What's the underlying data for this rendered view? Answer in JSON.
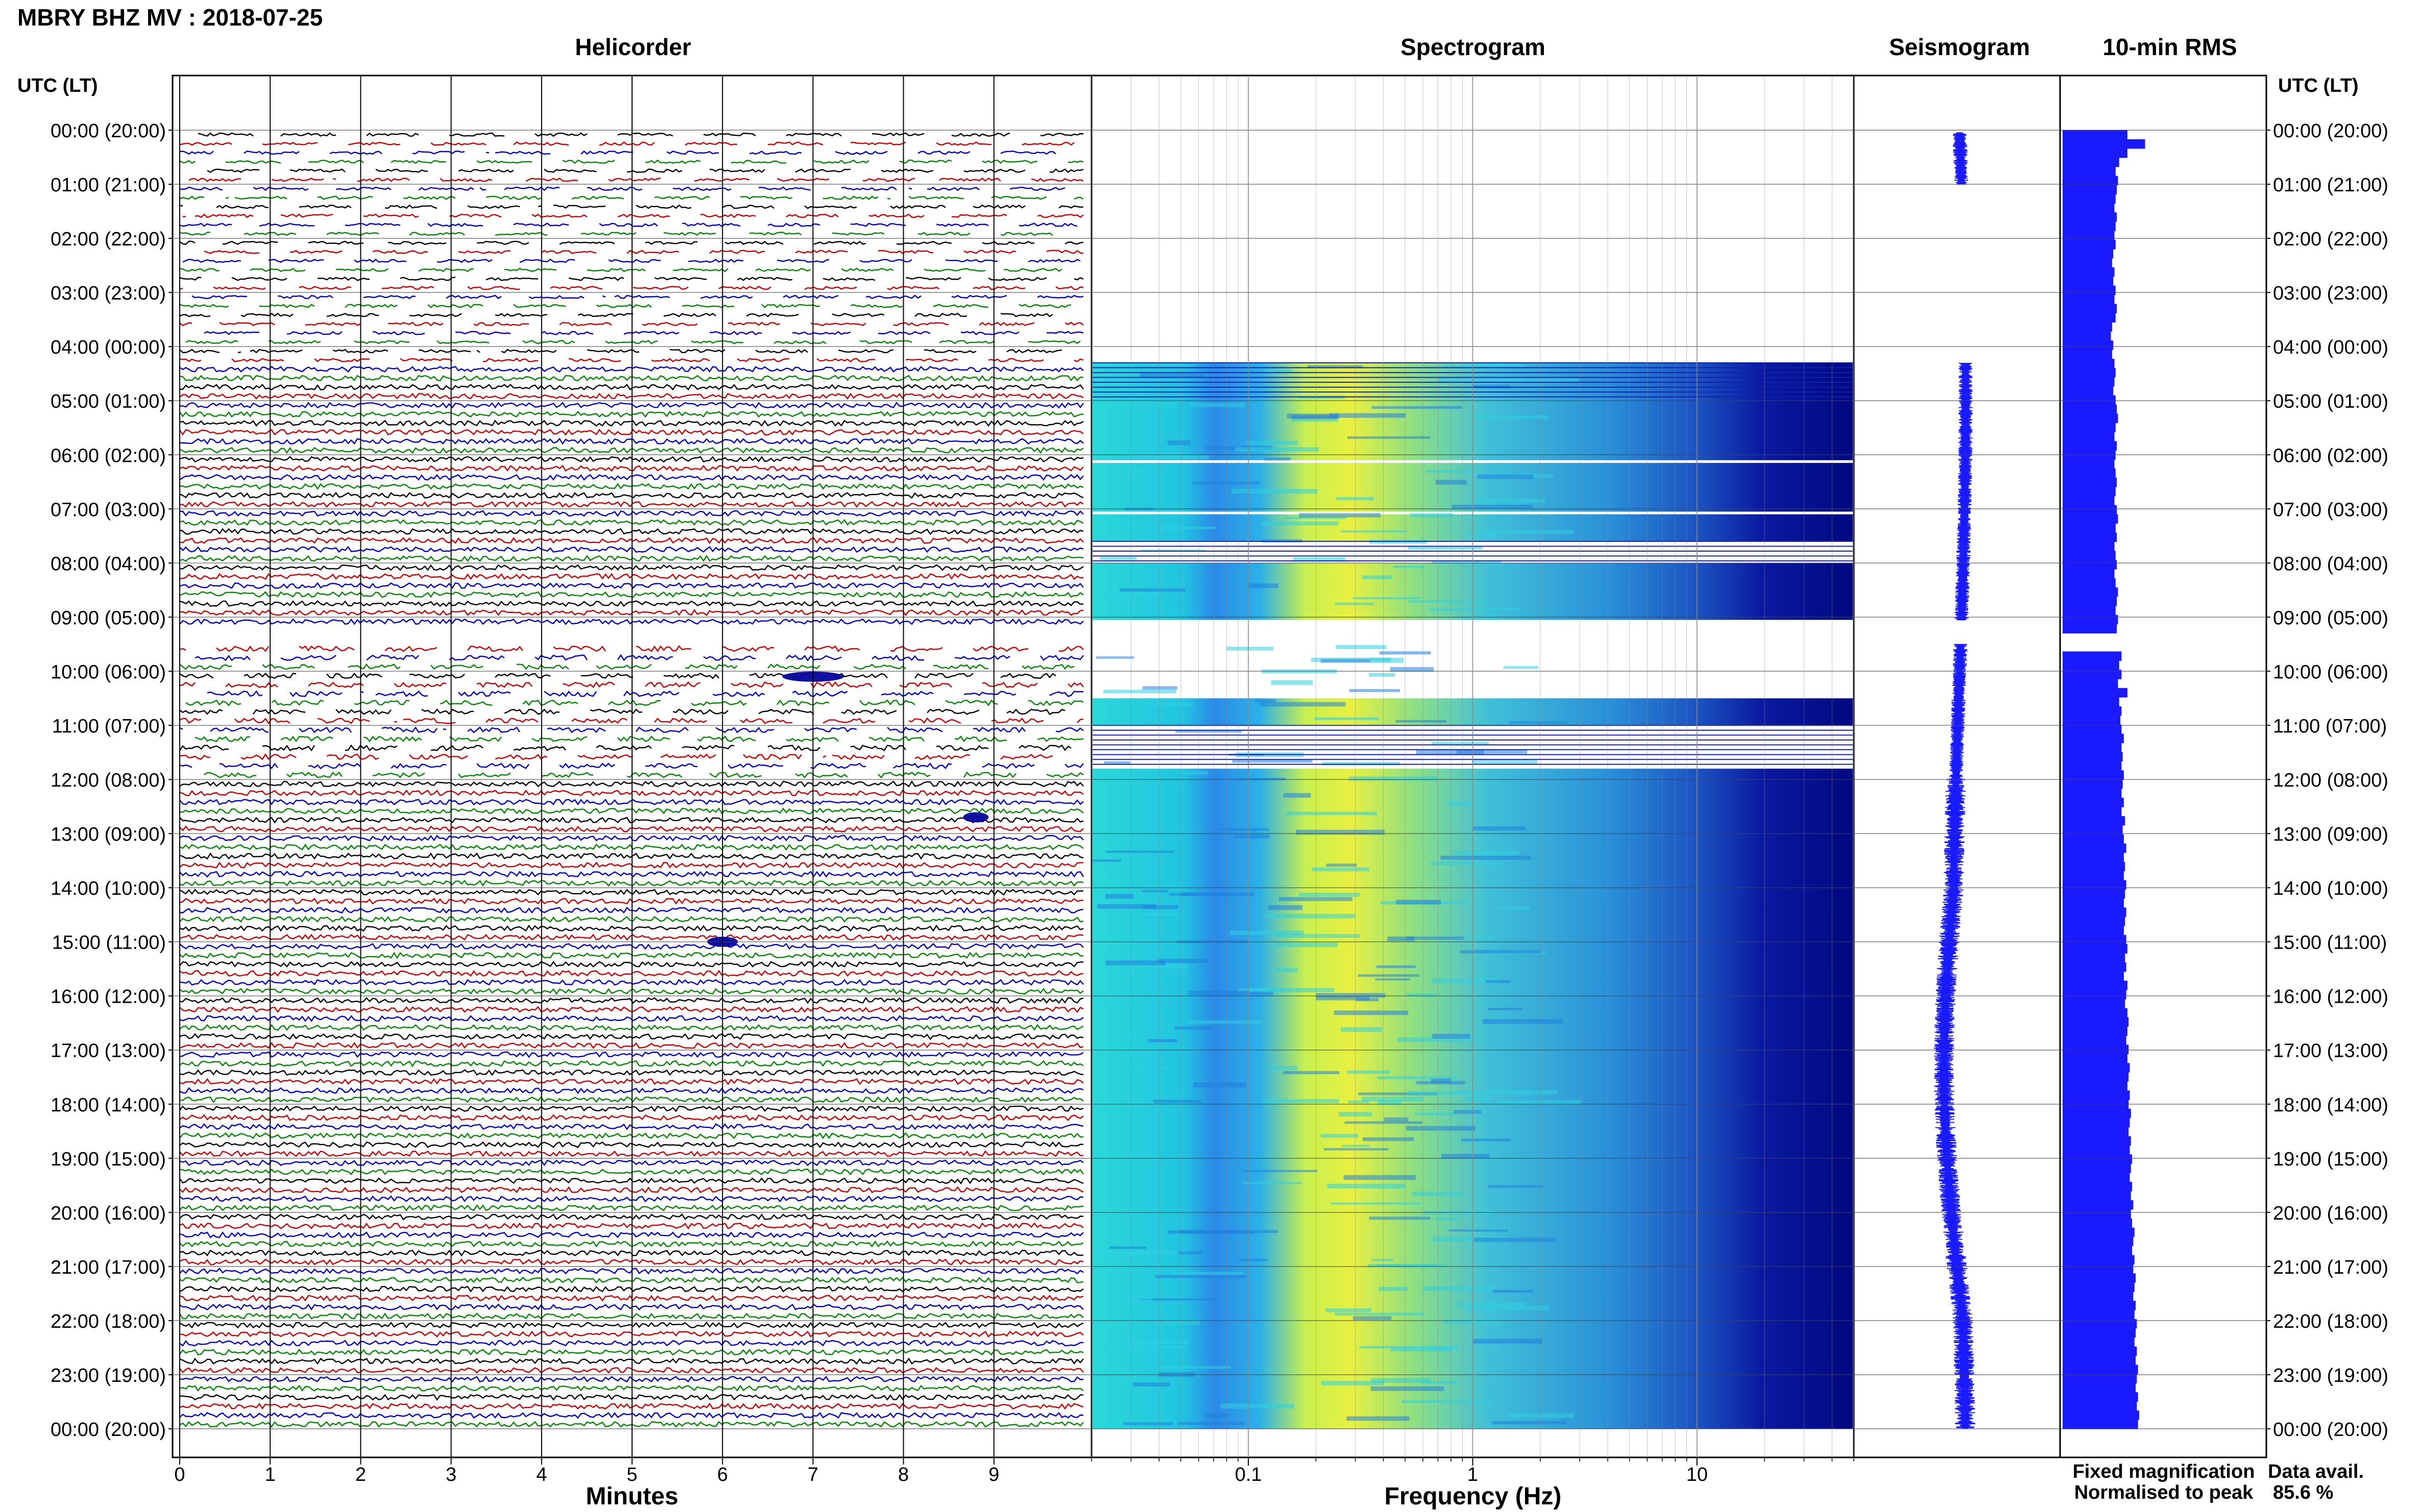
{
  "title": "MBRY BHZ MV : 2018-07-25",
  "panels": {
    "helicorder": "Helicorder",
    "spectrogram": "Spectrogram",
    "seismogram": "Seismogram",
    "rms": "10-min RMS"
  },
  "time_axis_label": "UTC (LT)",
  "time_labels": [
    "00:00 (20:00)",
    "01:00 (21:00)",
    "02:00 (22:00)",
    "03:00 (23:00)",
    "04:00 (00:00)",
    "05:00 (01:00)",
    "06:00 (02:00)",
    "07:00 (03:00)",
    "08:00 (04:00)",
    "09:00 (05:00)",
    "10:00 (06:00)",
    "11:00 (07:00)",
    "12:00 (08:00)",
    "13:00 (09:00)",
    "14:00 (10:00)",
    "15:00 (11:00)",
    "16:00 (12:00)",
    "17:00 (13:00)",
    "18:00 (14:00)",
    "19:00 (15:00)",
    "20:00 (16:00)",
    "21:00 (17:00)",
    "22:00 (18:00)",
    "23:00 (19:00)",
    "00:00 (20:00)"
  ],
  "helicorder_xlabel": "Minutes",
  "helicorder_ticks": [
    "0",
    "1",
    "2",
    "3",
    "4",
    "5",
    "6",
    "7",
    "8",
    "9"
  ],
  "spectrogram_xlabel": "Frequency (Hz)",
  "spectrogram_ticks": [
    "0.1",
    "1",
    "10"
  ],
  "legend": {
    "fixed": "Fixed magnification",
    "normalised": "Normalised to peak",
    "fixed_color": "#1a1aff",
    "normalised_color": "#ff1a1a"
  },
  "data_avail_label": "Data avail.",
  "data_avail_value": "85.6 %",
  "trace_colors": [
    "#000000",
    "#cc0000",
    "#0000cc",
    "#008800"
  ],
  "chart_data": {
    "type": "heatmap",
    "hours": 24,
    "helicorder_xlim_min": [
      0,
      10
    ],
    "spectrogram_xlim_hz": [
      0.02,
      50
    ],
    "spectrogram_scale": "log",
    "gaps_utc_hours": [
      [
        0,
        4.3
      ],
      [
        9.05,
        9.5
      ]
    ],
    "rms_10min": [
      0.55,
      0.7,
      0.55,
      0.48,
      0.45,
      0.47,
      0.46,
      0.45,
      0.44,
      0.46,
      0.45,
      0.44,
      0.45,
      0.43,
      0.42,
      0.44,
      0.43,
      0.45,
      0.44,
      0.46,
      0.45,
      0.42,
      0.41,
      0.43,
      0.42,
      0.44,
      0.45,
      0.44,
      0.43,
      0.45,
      0.46,
      0.47,
      0.45,
      0.44,
      0.46,
      0.45,
      0.44,
      0.45,
      0.46,
      0.45,
      0.44,
      0.46,
      0.47,
      0.45,
      0.46,
      0.44,
      0.45,
      0.46,
      0.44,
      0.45,
      0.47,
      0.46,
      0.45,
      0.47,
      0.46,
      0.0,
      0.0,
      0.5,
      0.48,
      0.5,
      0.47,
      0.55,
      0.48,
      0.5,
      0.49,
      0.5,
      0.52,
      0.5,
      0.51,
      0.5,
      0.52,
      0.51,
      0.5,
      0.52,
      0.5,
      0.53,
      0.51,
      0.52,
      0.54,
      0.52,
      0.53,
      0.52,
      0.54,
      0.53,
      0.52,
      0.54,
      0.53,
      0.52,
      0.54,
      0.55,
      0.53,
      0.54,
      0.52,
      0.55,
      0.54,
      0.53,
      0.55,
      0.56,
      0.55,
      0.54,
      0.56,
      0.55,
      0.57,
      0.56,
      0.55,
      0.57,
      0.56,
      0.58,
      0.57,
      0.56,
      0.58,
      0.57,
      0.59,
      0.58,
      0.57,
      0.59,
      0.58,
      0.6,
      0.58,
      0.59,
      0.61,
      0.6,
      0.59,
      0.61,
      0.6,
      0.62,
      0.61,
      0.6,
      0.62,
      0.61,
      0.63,
      0.62,
      0.61,
      0.63,
      0.62,
      0.64,
      0.63,
      0.62,
      0.64,
      0.63,
      0.65,
      0.64
    ]
  }
}
